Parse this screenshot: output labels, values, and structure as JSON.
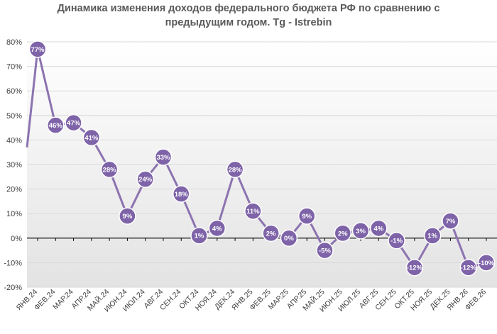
{
  "chart_data": {
    "type": "line",
    "title_lines": [
      "Динамика изменения доходов федерального бюджета РФ по сравнению с",
      "предыдущим годом. Tg - Istrebin"
    ],
    "categories": [
      "ЯНВ.24",
      "ФЕВ.24",
      "МАР.24",
      "АПР.24",
      "МАЙ.24",
      "ИЮН.24",
      "ИЮЛ.24",
      "АВГ.24",
      "СЕН.24",
      "ОКТ.24",
      "НОЯ.24",
      "ДЕК.24",
      "ЯНВ.25",
      "ФЕВ.25",
      "МАР.25",
      "АПР.25",
      "МАЙ.25",
      "ИЮН.25",
      "ИЮЛ.25",
      "АВГ.25",
      "СЕН.25",
      "ОКТ.25",
      "НОЯ.25",
      "ДЕК.25",
      "ЯНВ.26",
      "ФЕВ.26"
    ],
    "values": [
      77,
      46,
      47,
      41,
      28,
      9,
      24,
      33,
      18,
      1,
      4,
      28,
      11,
      2,
      0,
      9,
      -5,
      2,
      3,
      4,
      -1,
      -12,
      1,
      7,
      -12,
      -10
    ],
    "data_labels": [
      "77%",
      "46%",
      "47%",
      "41%",
      "28%",
      "9%",
      "24%",
      "33%",
      "18%",
      "1%",
      "4%",
      "28%",
      "11%",
      "2%",
      "0%",
      "9%",
      "-5%",
      "2%",
      "3%",
      "4%",
      "-1%",
      "-12%",
      "1%",
      "7%",
      "-12%",
      "-10%"
    ],
    "yticks": [
      -20,
      -10,
      0,
      10,
      20,
      30,
      40,
      50,
      60,
      70,
      80
    ],
    "ytick_labels": [
      "-20%",
      "-10%",
      "0%",
      "10%",
      "20%",
      "30%",
      "40%",
      "50%",
      "60%",
      "70%",
      "80%"
    ],
    "ylim": [
      -20,
      80
    ],
    "grid": true,
    "colors": {
      "line": "#8c73b0",
      "marker": "#7e63a8",
      "grid": "#d9d9d9",
      "plot_bg_top": "#ffffff",
      "plot_bg_bottom": "#e3e3e3"
    }
  }
}
